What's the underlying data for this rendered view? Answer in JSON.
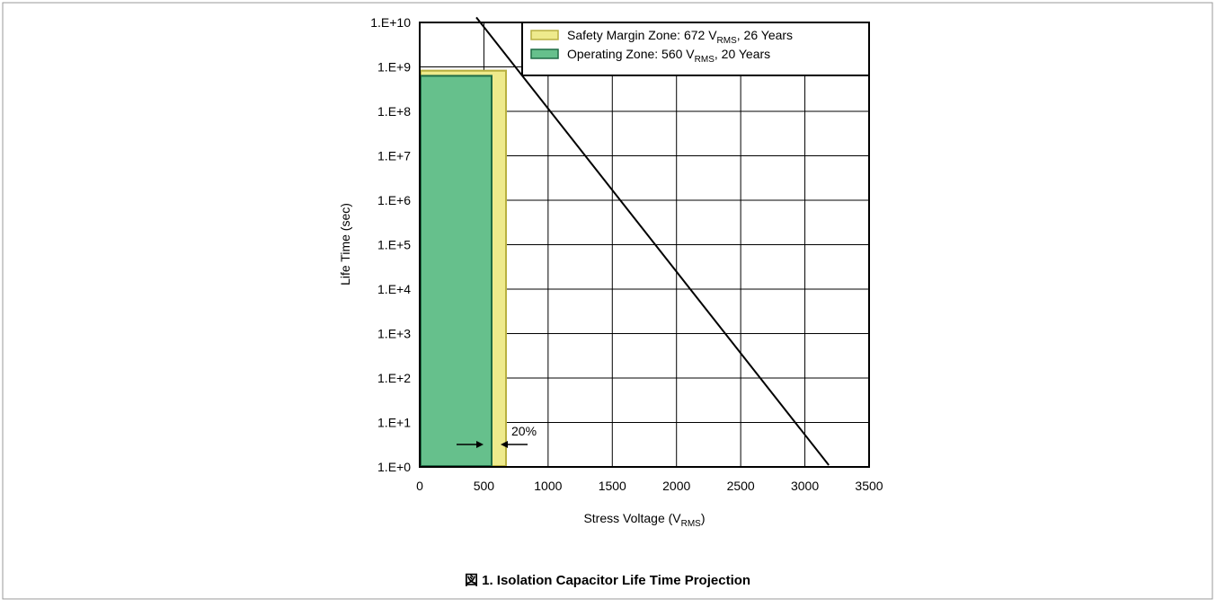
{
  "chart_data": {
    "type": "line",
    "caption": "図 1. Isolation Capacitor Life Time Projection",
    "xlabel": [
      "Stress Voltage (V",
      "RMS",
      ")"
    ],
    "ylabel": "Life Time (sec)",
    "xlim": [
      0,
      3500
    ],
    "xticks": [
      0,
      500,
      1000,
      1500,
      2000,
      2500,
      3000,
      3500
    ],
    "ylim": [
      1,
      10000000000
    ],
    "log_y": true,
    "grid": true,
    "yticks": [
      {
        "value": 1,
        "label": "1.E+0"
      },
      {
        "value": 10,
        "label": "1.E+1"
      },
      {
        "value": 100,
        "label": "1.E+2"
      },
      {
        "value": 1000,
        "label": "1.E+3"
      },
      {
        "value": 10000,
        "label": "1.E+4"
      },
      {
        "value": 100000,
        "label": "1.E+5"
      },
      {
        "value": 1000000,
        "label": "1.E+6"
      },
      {
        "value": 10000000,
        "label": "1.E+7"
      },
      {
        "value": 100000000,
        "label": "1.E+8"
      },
      {
        "value": 1000000000,
        "label": "1.E+9"
      },
      {
        "value": 10000000000,
        "label": "1.E+10"
      }
    ],
    "zones": [
      {
        "name": [
          "Safety Margin Zone: 672 V",
          "RMS",
          ", 26 Years"
        ],
        "color": "#eeea8c",
        "edge": "#b8b040",
        "x": 672,
        "value": 820000000
      },
      {
        "name": [
          "Operating Zone: 560 V",
          "RMS",
          ", 20 Years"
        ],
        "color": "#66c08c",
        "edge": "#1f6b45",
        "x": 560,
        "value": 630000000
      }
    ],
    "series": [
      {
        "color": "#000000",
        "x": [
          441,
          3186
        ],
        "values": [
          13000000000,
          1.1
        ]
      }
    ],
    "annotations": [
      "20%"
    ]
  }
}
